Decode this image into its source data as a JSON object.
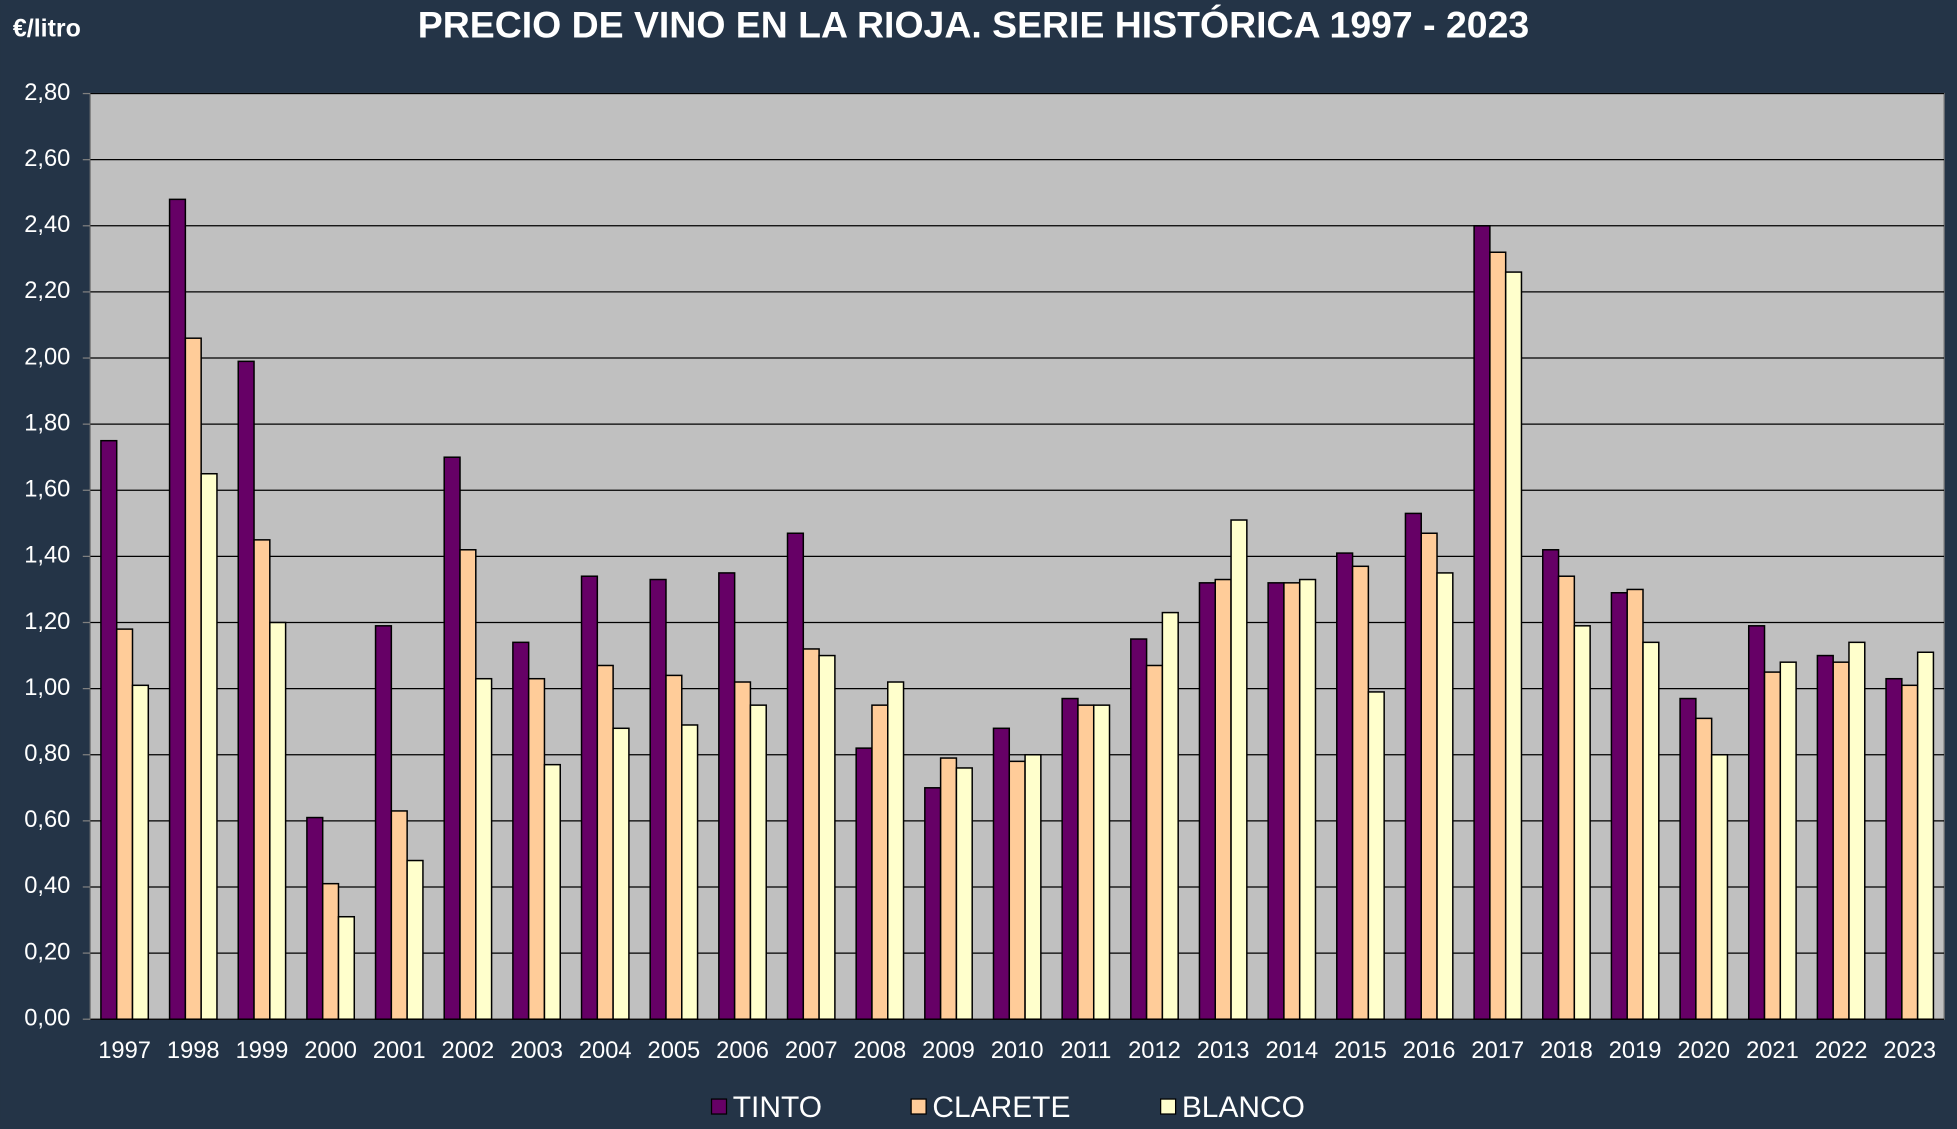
{
  "chart_data": {
    "type": "bar",
    "title": "PRECIO DE VINO EN LA RIOJA. SERIE HISTÓRICA 1997 - 2023",
    "y_label": "€/litro",
    "categories": [
      "1997",
      "1998",
      "1999",
      "2000",
      "2001",
      "2002",
      "2003",
      "2004",
      "2005",
      "2006",
      "2007",
      "2008",
      "2009",
      "2010",
      "2011",
      "2012",
      "2013",
      "2014",
      "2015",
      "2016",
      "2017",
      "2018",
      "2019",
      "2020",
      "2021",
      "2022",
      "2023"
    ],
    "series": [
      {
        "name": "TINTO",
        "color": "#660066",
        "values": [
          1.75,
          2.48,
          1.99,
          0.61,
          1.19,
          1.7,
          1.14,
          1.34,
          1.33,
          1.35,
          1.47,
          0.82,
          0.7,
          0.88,
          0.97,
          1.15,
          1.32,
          1.32,
          1.41,
          1.53,
          2.4,
          1.42,
          1.29,
          0.97,
          1.19,
          1.1,
          1.03
        ]
      },
      {
        "name": "CLARETE",
        "color": "#ffcc99",
        "values": [
          1.18,
          2.06,
          1.45,
          0.41,
          0.63,
          1.42,
          1.03,
          1.07,
          1.04,
          1.02,
          1.12,
          0.95,
          0.79,
          0.78,
          0.95,
          1.07,
          1.33,
          1.32,
          1.37,
          1.47,
          2.32,
          1.34,
          1.3,
          0.91,
          1.05,
          1.08,
          1.01
        ]
      },
      {
        "name": "BLANCO",
        "color": "#ffffcc",
        "values": [
          1.01,
          1.65,
          1.2,
          0.31,
          0.48,
          1.03,
          0.77,
          0.88,
          0.89,
          0.95,
          1.1,
          1.02,
          0.76,
          0.8,
          0.95,
          1.23,
          1.51,
          1.33,
          0.99,
          1.35,
          2.26,
          1.19,
          1.14,
          0.8,
          1.08,
          1.14,
          1.11
        ]
      }
    ],
    "ylim": [
      0,
      2.8
    ],
    "yticks": [
      {
        "value": 0,
        "label": "0,00"
      },
      {
        "value": 0.2,
        "label": "0,20"
      },
      {
        "value": 0.4,
        "label": "0,40"
      },
      {
        "value": 0.6,
        "label": "0,60"
      },
      {
        "value": 0.8,
        "label": "0,80"
      },
      {
        "value": 1.0,
        "label": "1,00"
      },
      {
        "value": 1.2,
        "label": "1,20"
      },
      {
        "value": 1.4,
        "label": "1,40"
      },
      {
        "value": 1.6,
        "label": "1,60"
      },
      {
        "value": 1.8,
        "label": "1,80"
      },
      {
        "value": 2.0,
        "label": "2,00"
      },
      {
        "value": 2.2,
        "label": "2,20"
      },
      {
        "value": 2.4,
        "label": "2,40"
      },
      {
        "value": 2.6,
        "label": "2,60"
      },
      {
        "value": 2.8,
        "label": "2,80"
      }
    ],
    "grid": true,
    "legend": "bottom"
  }
}
